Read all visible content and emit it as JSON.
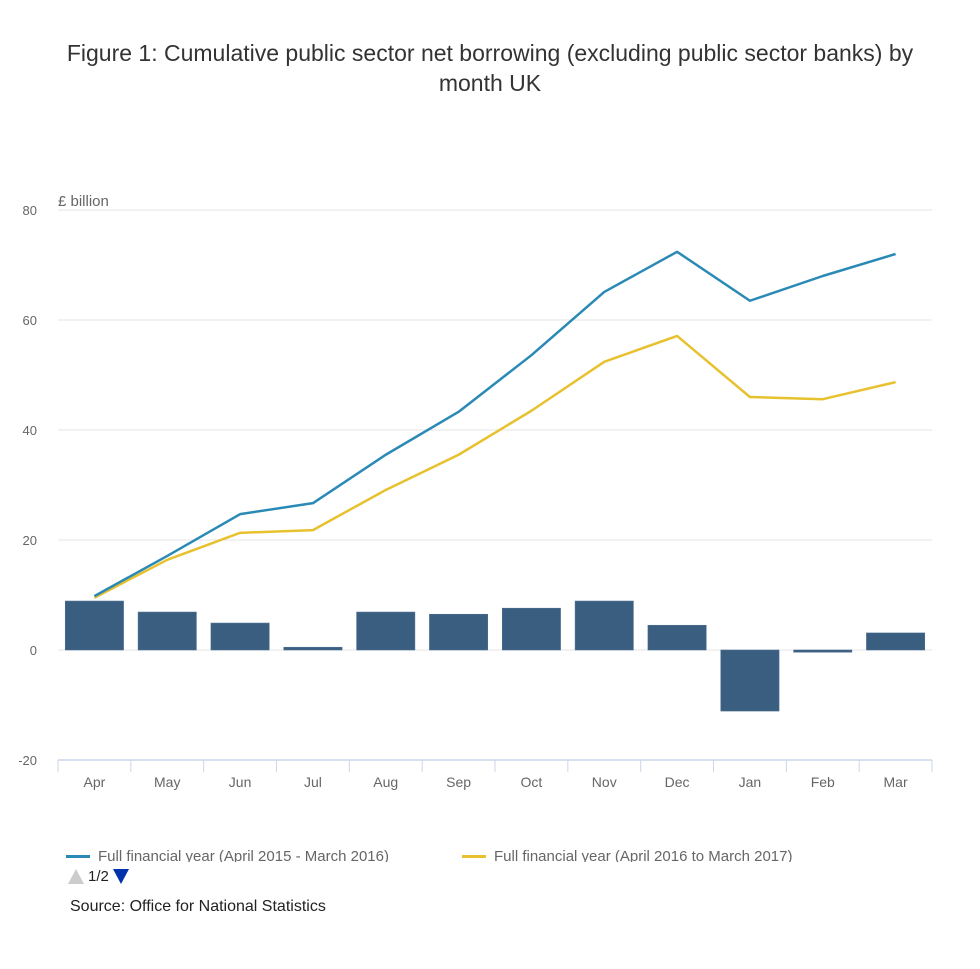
{
  "chart_data": {
    "type": "line",
    "title": "Figure 1: Cumulative public sector net borrowing (excluding public sector banks) by month UK",
    "xlabel": "",
    "ylabel": "£ billion",
    "ylim": [
      -20,
      80
    ],
    "yticks": [
      80,
      60,
      40,
      20,
      0,
      -20
    ],
    "grid": true,
    "categories": [
      "Apr",
      "May",
      "Jun",
      "Jul",
      "Aug",
      "Sep",
      "Oct",
      "Nov",
      "Dec",
      "Jan",
      "Feb",
      "Mar"
    ],
    "series": [
      {
        "name": "Full financial year (April 2015 - March 2016)",
        "type": "line",
        "color": "#2a8ab5",
        "values": [
          9.8,
          17.1,
          24.7,
          26.7,
          35.5,
          43.3,
          53.6,
          65.1,
          72.4,
          63.5,
          68.0,
          72.0
        ]
      },
      {
        "name": "Full financial year (April 2016 to March 2017)",
        "type": "line",
        "color": "#e8c12e",
        "values": [
          9.5,
          16.4,
          21.3,
          21.8,
          29.1,
          35.5,
          43.5,
          52.4,
          57.1,
          46.0,
          45.6,
          48.7
        ]
      },
      {
        "name": "",
        "type": "bar",
        "color": "#3a5e80",
        "values": [
          8.9,
          6.9,
          4.9,
          0.5,
          6.9,
          6.5,
          7.6,
          8.9,
          4.5,
          -11.1,
          -0.4,
          3.1
        ]
      }
    ],
    "legend_position": "bottom"
  },
  "legend": {
    "items": [
      {
        "label": "Full financial year (April 2015 - March 2016)",
        "color": "#2a8ab5"
      },
      {
        "label": "Full financial year (April 2016 to March 2017)",
        "color": "#e8c12e"
      }
    ],
    "pager": {
      "label": "1/2",
      "up_color": "#cccccc",
      "down_color": "#0033aa"
    }
  },
  "source": "Source: Office for National Statistics"
}
